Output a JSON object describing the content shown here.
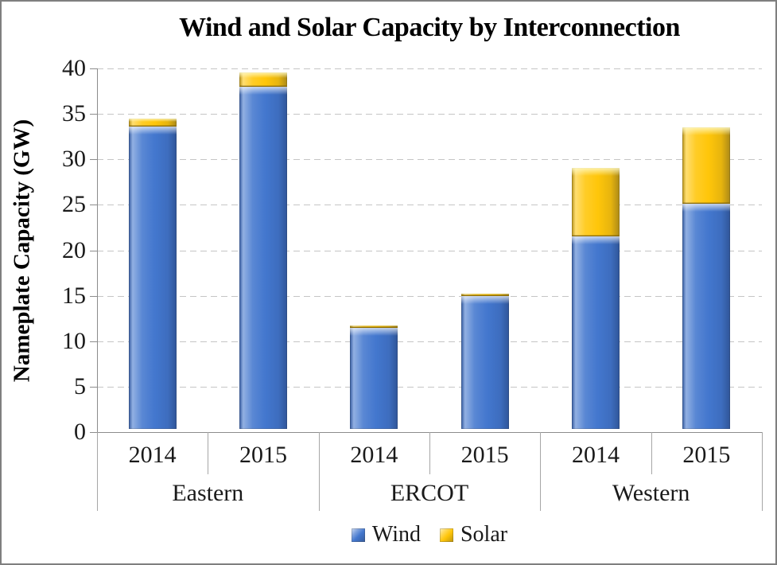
{
  "window": {
    "background": "#FFFFFF",
    "border_color": "#7F7F7F"
  },
  "chart_data": {
    "type": "bar",
    "stacked": true,
    "title": "Wind and Solar Capacity by Interconnection",
    "ylabel": "Nameplate Capacity (GW)",
    "xlabel": "",
    "ylim": [
      0,
      40
    ],
    "yticks": [
      0,
      5,
      10,
      15,
      20,
      25,
      30,
      35,
      40
    ],
    "grid": "horizontal-dashed",
    "legend_position": "bottom-center",
    "groups": [
      "Eastern",
      "ERCOT",
      "Western"
    ],
    "categories": [
      "2014",
      "2015"
    ],
    "bar_order": [
      "Eastern 2014",
      "Eastern 2015",
      "ERCOT 2014",
      "ERCOT 2015",
      "Western 2014",
      "Western 2015"
    ],
    "series": [
      {
        "name": "Wind",
        "color": "#4377CE",
        "values": [
          33.3,
          37.6,
          11.1,
          14.6,
          21.2,
          24.8
        ]
      },
      {
        "name": "Solar",
        "color": "#FFC60A",
        "values": [
          0.8,
          1.6,
          0.3,
          0.3,
          7.5,
          8.4
        ]
      }
    ],
    "totals": [
      34.1,
      39.2,
      11.4,
      14.9,
      28.7,
      33.2
    ],
    "axis_color": "#8C8C8C",
    "gridline_color": "#C5C5C5",
    "text_color": "#1A1A1A"
  }
}
